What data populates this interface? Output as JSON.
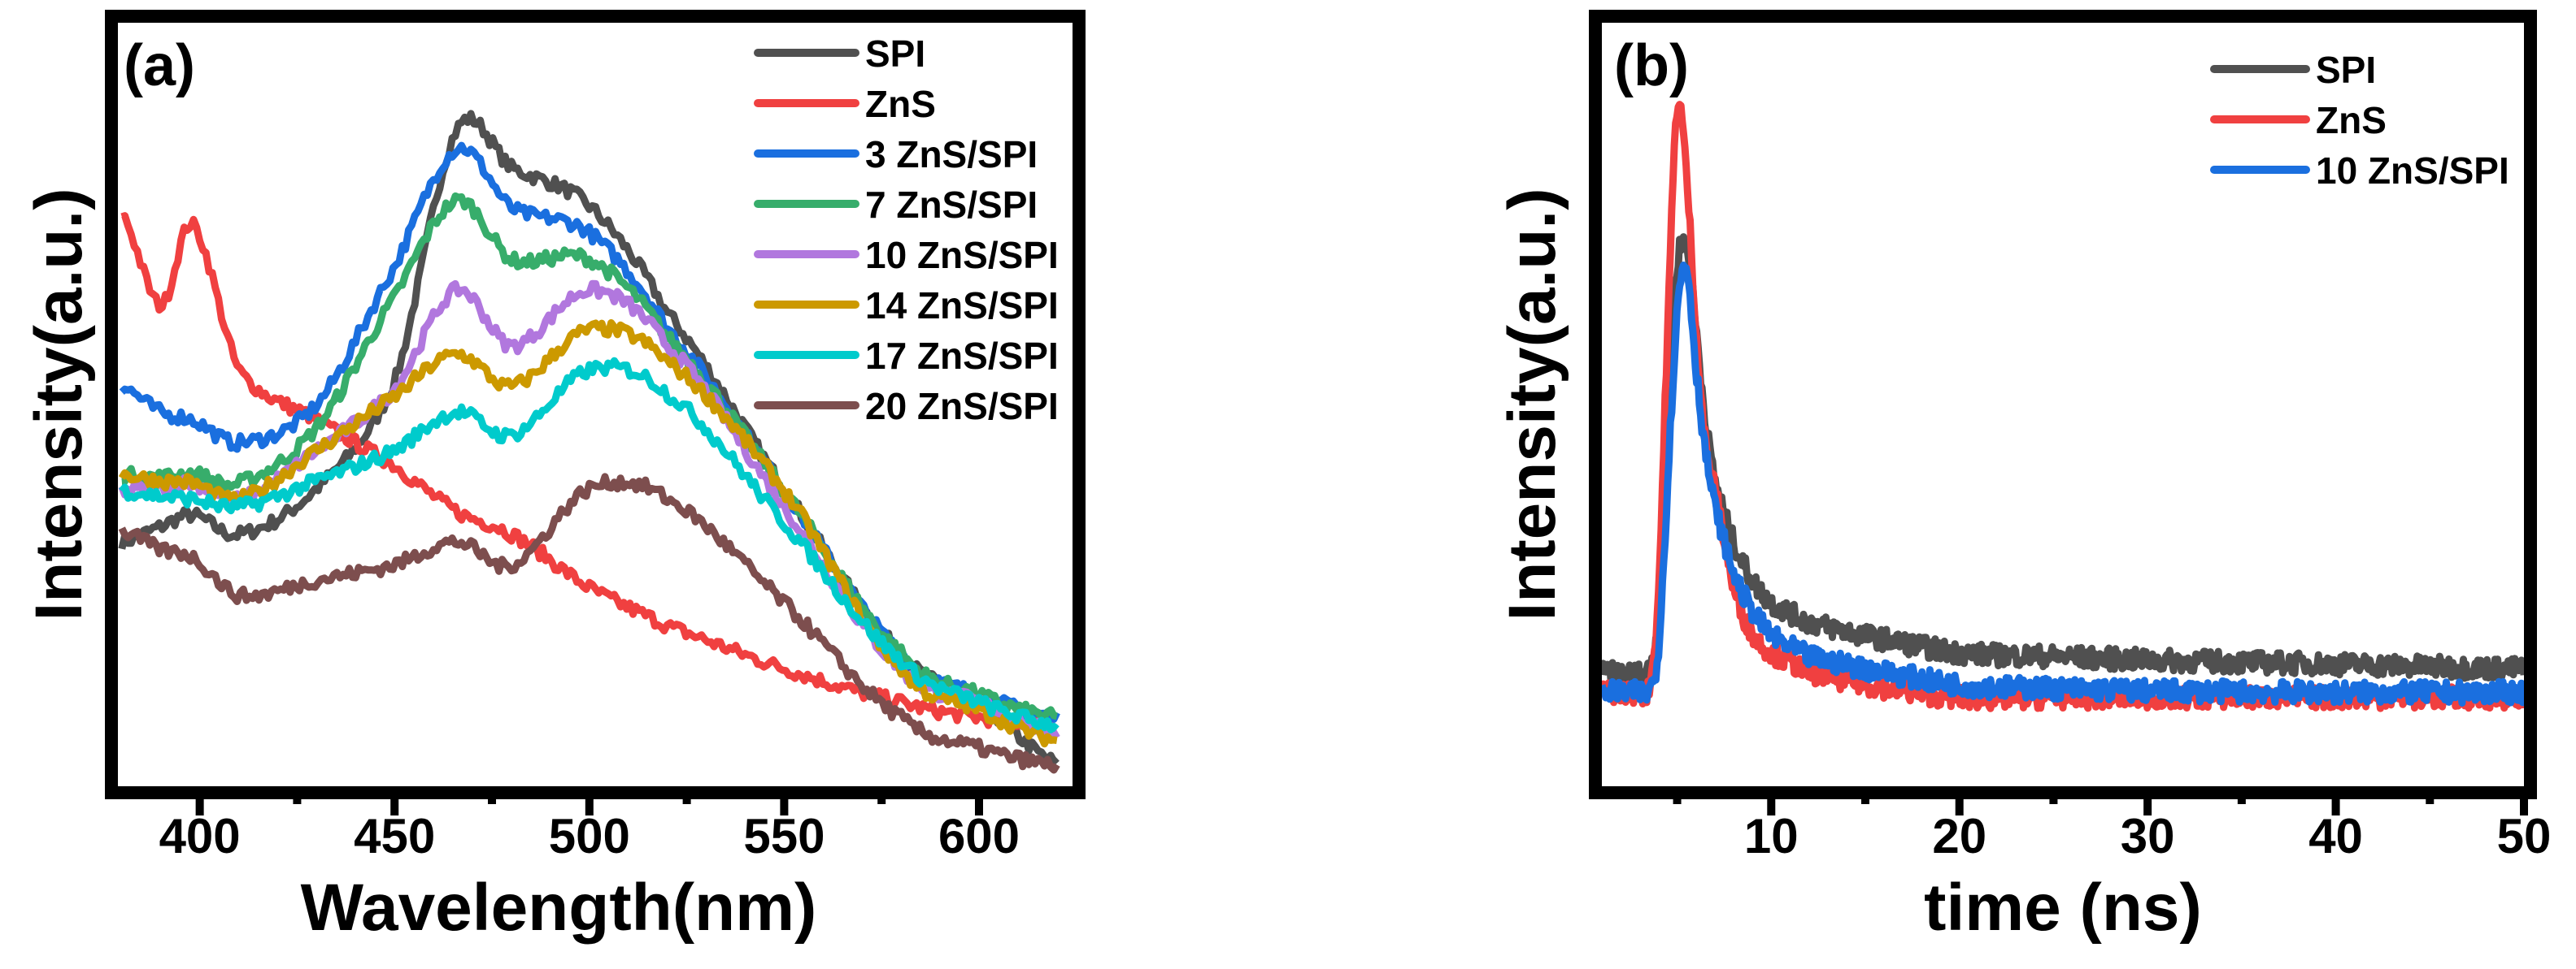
{
  "chart_data": [
    {
      "type": "line",
      "panel_label": "(a)",
      "title": "",
      "xlabel": "Wavelength(nm)",
      "ylabel": "Intensity(a.u.)",
      "xlim": [
        379,
        624
      ],
      "ylim": [
        0,
        100
      ],
      "xticks": [
        400,
        450,
        500,
        550,
        600
      ],
      "xtick_labels": [
        "400",
        "450",
        "500",
        "550",
        "600"
      ],
      "minor_xtick_step": 25,
      "y_tick_labels_shown": false,
      "grid": false,
      "legend_position": "top-right",
      "x": [
        380,
        390,
        398,
        410,
        430,
        450,
        466,
        480,
        500,
        520,
        550,
        580,
        600,
        620
      ],
      "series": [
        {
          "name": "SPI",
          "color": "#505050",
          "values": [
            32,
            34,
            35.5,
            33,
            39,
            53,
            86,
            81,
            76,
            62,
            39,
            17.5,
            11,
            3
          ]
        },
        {
          "name": "ZnS",
          "color": "#f04040",
          "values": [
            75,
            63,
            73.6,
            54.5,
            48,
            42,
            36,
            33,
            26,
            21,
            15.4,
            11,
            9,
            8
          ]
        },
        {
          "name": "3 ZnS/SPI",
          "color": "#1a6fdf",
          "values": [
            52.4,
            49,
            48,
            45,
            50,
            68,
            83.5,
            75.7,
            72.5,
            60,
            38.7,
            17.5,
            12,
            9
          ]
        },
        {
          "name": "7 ZnS/SPI",
          "color": "#37ad6b",
          "values": [
            40.8,
            40.5,
            41,
            39.7,
            47,
            64,
            76.7,
            69,
            69,
            58.8,
            38.7,
            17.5,
            12,
            9
          ]
        },
        {
          "name": "10 ZnS/SPI",
          "color": "#b177de",
          "values": [
            38.7,
            39,
            39.7,
            37.6,
            44,
            52,
            65,
            57.7,
            65,
            57.7,
            36.6,
            15.4,
            11,
            7
          ]
        },
        {
          "name": "14 ZnS/SPI",
          "color": "#cc9900",
          "values": [
            40.8,
            40,
            39.7,
            37.6,
            44,
            51,
            56.6,
            52.4,
            59.8,
            55.6,
            38.7,
            15.4,
            10,
            6
          ]
        },
        {
          "name": "17 ZnS/SPI",
          "color": "#00cbcc",
          "values": [
            38.7,
            38,
            37.6,
            36.6,
            40,
            44,
            49,
            46,
            54.5,
            51.4,
            34.5,
            16.5,
            11,
            8
          ]
        },
        {
          "name": "20 ZnS/SPI",
          "color": "#7d4e4e",
          "values": [
            33.4,
            31,
            30,
            25,
            27,
            29,
            32,
            29,
            39,
            37.6,
            24,
            9,
            5,
            2.7
          ]
        }
      ]
    },
    {
      "type": "line",
      "panel_label": "(b)",
      "title": "",
      "xlabel": "time (ns)",
      "ylabel": "Intensity(a.u.)",
      "xlim": [
        1,
        50
      ],
      "ylim": [
        0,
        100
      ],
      "xticks": [
        10,
        20,
        30,
        40,
        50
      ],
      "xtick_labels": [
        "10",
        "20",
        "30",
        "40",
        "50"
      ],
      "minor_xtick_step": 5,
      "y_tick_labels_shown": false,
      "grid": false,
      "legend_position": "top-right",
      "x": [
        1,
        2,
        3,
        3.5,
        4,
        4.5,
        5,
        5.5,
        6,
        6.5,
        7,
        8,
        9,
        10,
        12,
        15,
        20,
        25,
        30,
        40,
        50
      ],
      "series": [
        {
          "name": "SPI",
          "color": "#505050",
          "values": [
            14.8,
            14.8,
            14.8,
            15.5,
            22,
            45,
            68,
            70.8,
            60,
            48,
            40,
            32,
            27,
            24,
            21.5,
            19.7,
            17.5,
            17,
            16.5,
            16,
            15.4
          ]
        },
        {
          "name": "ZnS",
          "color": "#f04040",
          "values": [
            12.3,
            12.3,
            12.3,
            13,
            25,
            60,
            89,
            80,
            60,
            45,
            38.7,
            26,
            20,
            17.5,
            15,
            13.3,
            11.6,
            11.6,
            11.6,
            11.6,
            11.6
          ]
        },
        {
          "name": "10 ZnS/SPI",
          "color": "#1a6fdf",
          "values": [
            12.3,
            12.3,
            12.3,
            12.5,
            18,
            40,
            62,
            68,
            55,
            44,
            36.6,
            28,
            23,
            19.7,
            17,
            15.4,
            13.3,
            12.8,
            12.5,
            12.3,
            12.3
          ]
        }
      ]
    }
  ]
}
